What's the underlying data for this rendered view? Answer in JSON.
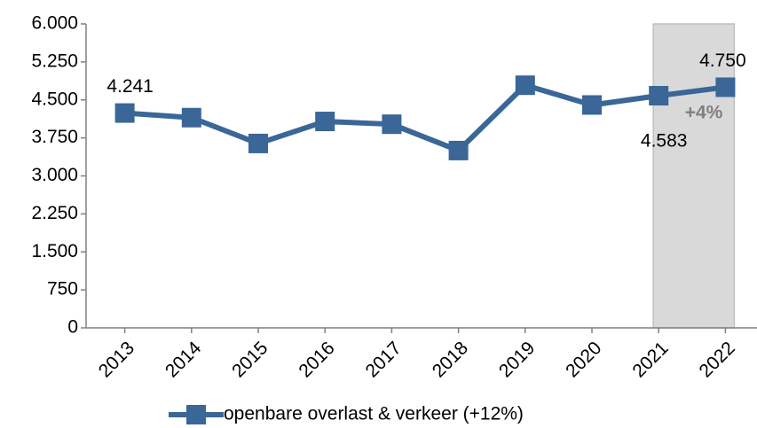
{
  "chart_data": {
    "type": "line",
    "categories": [
      "2013",
      "2014",
      "2015",
      "2016",
      "2017",
      "2018",
      "2019",
      "2020",
      "2021",
      "2022"
    ],
    "series": [
      {
        "name": "openbare overlast & verkeer (+12%)",
        "color": "#3a6698",
        "values": [
          4241,
          4150,
          3640,
          4075,
          4020,
          3500,
          4790,
          4400,
          4583,
          4750
        ],
        "value_labels": [
          "4.241",
          null,
          null,
          null,
          null,
          null,
          null,
          null,
          "4.583",
          "4.750"
        ]
      }
    ],
    "ylim": [
      0,
      6000
    ],
    "yticks": [
      0,
      750,
      {
        "value": 1500,
        "label": "1.500"
      },
      {
        "value": 2250,
        "label": "2.250"
      },
      {
        "value": 3000,
        "label": "3.000"
      },
      {
        "value": 3750,
        "label": "3.750"
      },
      {
        "value": 4500,
        "label": "4.500"
      },
      {
        "value": 5250,
        "label": "5.250"
      },
      {
        "value": 6000,
        "label": "6.000"
      }
    ],
    "shaded_categories": [
      "2021",
      "2022"
    ],
    "annotations": [
      {
        "text": "+4%",
        "color": "#7f7f7f"
      }
    ],
    "legend": "bottom"
  }
}
